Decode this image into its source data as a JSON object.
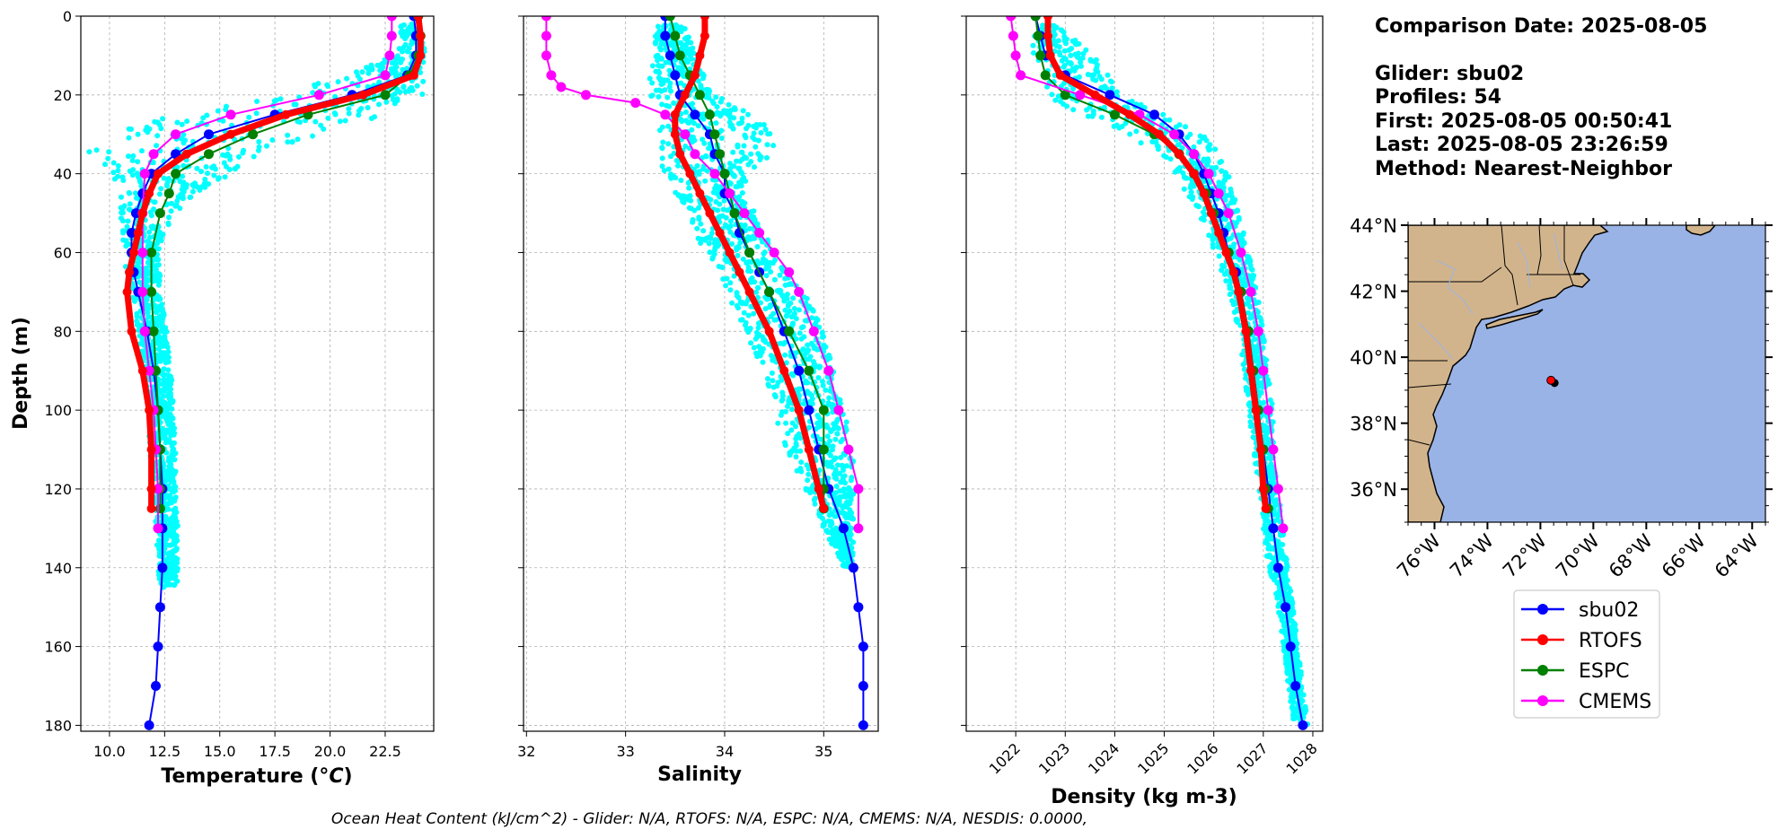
{
  "info": {
    "comparison": "Comparison Date: 2025-08-05",
    "glider": "Glider: sbu02",
    "profiles": "Profiles: 54",
    "first": "First: 2025-08-05 00:50:41",
    "last": "Last: 2025-08-05 23:26:59",
    "method": "Method: Nearest-Neighbor"
  },
  "footer": "Ocean Heat Content (kJ/cm^2) - Glider: N/A,  RTOFS: N/A,  ESPC: N/A,  CMEMS: N/A,  NESDIS: 0.0000,",
  "y_axis_label": "Depth (m)",
  "colors": {
    "sbu02": "#0000ff",
    "RTOFS": "#ff0000",
    "ESPC": "#008000",
    "CMEMS": "#ff00ff",
    "glider_points": "#00ffff",
    "grid": "#b0b0b0",
    "land": "#d2b48c",
    "ocean": "#99b3e6"
  },
  "map": {
    "lat_labels": [
      "44°N",
      "42°N",
      "40°N",
      "38°N",
      "36°N"
    ],
    "lat_values": [
      44,
      42,
      40,
      38,
      36
    ],
    "lon_labels": [
      "76°W",
      "74°W",
      "72°W",
      "70°W",
      "68°W",
      "66°W",
      "64°W"
    ],
    "lon_values": [
      -76,
      -74,
      -72,
      -70,
      -68,
      -66,
      -64
    ],
    "extent": {
      "lon_min": -77,
      "lon_max": -63.5,
      "lat_min": 35,
      "lat_max": 44
    },
    "glider_position": {
      "lon": -71.6,
      "lat": 39.3
    }
  },
  "legend": [
    {
      "name": "sbu02",
      "color": "#0000ff"
    },
    {
      "name": "RTOFS",
      "color": "#ff0000"
    },
    {
      "name": "ESPC",
      "color": "#008000"
    },
    {
      "name": "CMEMS",
      "color": "#ff00ff"
    }
  ],
  "chart_data": [
    {
      "type": "line",
      "title": "",
      "xlabel": "Temperature (°C)",
      "ylabel": "Depth (m)",
      "xlim": [
        8.7,
        24.7
      ],
      "ylim": [
        181.5,
        0
      ],
      "xticks": [
        10.0,
        12.5,
        15.0,
        17.5,
        20.0,
        22.5
      ],
      "xtick_labels": [
        "10.0",
        "12.5",
        "15.0",
        "17.5",
        "20.0",
        "22.5"
      ],
      "yticks": [
        0,
        20,
        40,
        60,
        80,
        100,
        120,
        140,
        160,
        180
      ],
      "ytick_labels": [
        "0",
        "20",
        "40",
        "60",
        "80",
        "100",
        "120",
        "140",
        "160",
        "180"
      ],
      "scatter_band": {
        "name": "glider profiles",
        "depth": [
          2,
          10,
          20,
          25,
          30,
          35,
          40,
          45,
          50,
          55,
          60,
          70,
          80,
          90,
          100,
          110,
          120,
          130,
          140,
          145
        ],
        "min": [
          23.2,
          23.0,
          18.0,
          13.0,
          9.5,
          9.0,
          9.5,
          10.5,
          10.5,
          10.5,
          10.5,
          11.0,
          11.3,
          11.5,
          11.8,
          11.8,
          12.0,
          12.1,
          12.2,
          12.3
        ],
        "max": [
          24.2,
          24.3,
          24.3,
          22.5,
          19.5,
          17.0,
          15.5,
          14.0,
          13.0,
          12.5,
          12.3,
          12.3,
          12.6,
          12.8,
          12.9,
          13.0,
          13.0,
          13.1,
          13.1,
          13.1
        ]
      },
      "series": [
        {
          "name": "sbu02",
          "depth": [
            0,
            5,
            10,
            15,
            20,
            25,
            30,
            35,
            40,
            45,
            50,
            55,
            60,
            65,
            70,
            80,
            90,
            100,
            110,
            120,
            130,
            140,
            150,
            160,
            170,
            180
          ],
          "values": [
            23.8,
            23.9,
            23.9,
            23.5,
            21.0,
            17.5,
            14.5,
            13.0,
            11.9,
            11.5,
            11.2,
            11.0,
            11.0,
            11.1,
            11.3,
            11.7,
            12.0,
            12.2,
            12.3,
            12.4,
            12.4,
            12.4,
            12.3,
            12.2,
            12.1,
            11.8
          ]
        },
        {
          "name": "RTOFS",
          "depth": [
            0,
            5,
            10,
            15,
            20,
            25,
            30,
            35,
            40,
            45,
            50,
            55,
            60,
            65,
            70,
            80,
            90,
            100,
            110,
            120,
            125
          ],
          "values": [
            24.0,
            24.1,
            24.1,
            23.8,
            21.5,
            18.0,
            15.5,
            13.5,
            12.2,
            11.8,
            11.5,
            11.3,
            11.1,
            10.9,
            10.8,
            11.0,
            11.5,
            11.8,
            11.9,
            11.9,
            11.9
          ]
        },
        {
          "name": "ESPC",
          "depth": [
            0,
            5,
            10,
            15,
            20,
            25,
            30,
            35,
            40,
            45,
            50,
            60,
            70,
            80,
            90,
            100,
            110,
            120,
            125
          ],
          "values": [
            24.0,
            24.1,
            24.0,
            23.6,
            22.5,
            19.0,
            16.5,
            14.5,
            13.0,
            12.7,
            12.3,
            11.9,
            11.9,
            12.0,
            12.1,
            12.2,
            12.3,
            12.3,
            12.3
          ]
        },
        {
          "name": "CMEMS",
          "depth": [
            0,
            5,
            10,
            15,
            20,
            25,
            30,
            35,
            40,
            50,
            60,
            70,
            80,
            90,
            100,
            110,
            120,
            130
          ],
          "values": [
            22.8,
            22.8,
            22.7,
            22.5,
            19.5,
            15.5,
            13.0,
            12.0,
            11.6,
            11.5,
            11.5,
            11.5,
            11.6,
            11.8,
            12.0,
            12.1,
            12.2,
            12.2
          ]
        }
      ]
    },
    {
      "type": "line",
      "title": "",
      "xlabel": "Salinity",
      "ylabel": "",
      "xlim": [
        31.97,
        35.55
      ],
      "ylim": [
        181.5,
        0
      ],
      "xticks": [
        32,
        33,
        34,
        35
      ],
      "xtick_labels": [
        "32",
        "33",
        "34",
        "35"
      ],
      "yticks": [
        0,
        20,
        40,
        60,
        80,
        100,
        120,
        140,
        160,
        180
      ],
      "scatter_band": {
        "name": "glider profiles",
        "depth": [
          2,
          10,
          20,
          25,
          30,
          35,
          40,
          50,
          60,
          70,
          80,
          90,
          100,
          110,
          120,
          130,
          140
        ],
        "min": [
          33.3,
          33.3,
          33.2,
          33.4,
          33.3,
          33.3,
          33.4,
          33.6,
          33.8,
          34.0,
          34.2,
          34.4,
          34.5,
          34.6,
          34.8,
          35.0,
          35.2
        ],
        "max": [
          33.6,
          33.7,
          33.9,
          34.3,
          34.5,
          34.5,
          34.2,
          34.3,
          34.5,
          34.8,
          35.0,
          35.1,
          35.2,
          35.3,
          35.3,
          35.3,
          35.3
        ]
      },
      "series": [
        {
          "name": "sbu02",
          "depth": [
            0,
            5,
            10,
            15,
            20,
            25,
            30,
            35,
            40,
            45,
            50,
            55,
            60,
            65,
            70,
            80,
            90,
            100,
            110,
            120,
            130,
            140,
            150,
            160,
            170,
            180
          ],
          "values": [
            33.4,
            33.4,
            33.45,
            33.5,
            33.55,
            33.7,
            33.85,
            33.9,
            34.0,
            34.0,
            34.1,
            34.15,
            34.25,
            34.35,
            34.45,
            34.6,
            34.75,
            34.85,
            34.95,
            35.05,
            35.2,
            35.3,
            35.35,
            35.4,
            35.4,
            35.4
          ]
        },
        {
          "name": "RTOFS",
          "depth": [
            0,
            5,
            10,
            15,
            20,
            25,
            30,
            35,
            40,
            45,
            50,
            55,
            60,
            65,
            70,
            80,
            90,
            100,
            110,
            120,
            125
          ],
          "values": [
            33.8,
            33.8,
            33.75,
            33.7,
            33.6,
            33.5,
            33.5,
            33.55,
            33.65,
            33.75,
            33.85,
            33.95,
            34.05,
            34.15,
            34.25,
            34.45,
            34.6,
            34.75,
            34.85,
            34.95,
            35.0
          ]
        },
        {
          "name": "ESPC",
          "depth": [
            0,
            5,
            10,
            15,
            20,
            25,
            30,
            35,
            40,
            45,
            50,
            60,
            70,
            80,
            90,
            100,
            110,
            120,
            125
          ],
          "values": [
            33.45,
            33.5,
            33.55,
            33.65,
            33.75,
            33.85,
            33.9,
            33.95,
            34.0,
            34.05,
            34.1,
            34.25,
            34.45,
            34.65,
            34.85,
            35.0,
            35.0,
            35.0,
            35.0
          ]
        },
        {
          "name": "CMEMS",
          "depth": [
            0,
            5,
            10,
            15,
            18,
            20,
            22,
            25,
            30,
            35,
            40,
            45,
            50,
            55,
            60,
            65,
            70,
            80,
            90,
            100,
            110,
            120,
            130
          ],
          "values": [
            32.2,
            32.2,
            32.2,
            32.25,
            32.35,
            32.6,
            33.1,
            33.4,
            33.6,
            33.7,
            33.9,
            34.05,
            34.2,
            34.35,
            34.5,
            34.65,
            34.75,
            34.9,
            35.05,
            35.15,
            35.25,
            35.35,
            35.35
          ]
        }
      ]
    },
    {
      "type": "line",
      "title": "",
      "xlabel": "Density (kg m-3)",
      "ylabel": "",
      "xlim": [
        1021.0,
        1028.2
      ],
      "ylim": [
        181.5,
        0
      ],
      "xticks": [
        1022,
        1023,
        1024,
        1025,
        1026,
        1027,
        1028
      ],
      "xtick_labels": [
        "1022",
        "1023",
        "1024",
        "1025",
        "1026",
        "1027",
        "1028"
      ],
      "yticks": [
        0,
        20,
        40,
        60,
        80,
        100,
        120,
        140,
        160,
        180
      ],
      "scatter_band": {
        "name": "glider profiles",
        "depth": [
          2,
          10,
          20,
          25,
          30,
          35,
          40,
          50,
          60,
          70,
          80,
          90,
          100,
          110,
          120,
          130,
          140,
          150,
          160,
          170,
          180
        ],
        "min": [
          1022.4,
          1022.3,
          1022.6,
          1023.3,
          1024.2,
          1024.9,
          1025.2,
          1025.7,
          1026.0,
          1026.3,
          1026.5,
          1026.6,
          1026.7,
          1026.8,
          1026.9,
          1027.0,
          1027.1,
          1027.3,
          1027.4,
          1027.5,
          1027.6
        ],
        "max": [
          1022.8,
          1023.6,
          1024.2,
          1025.0,
          1025.8,
          1026.1,
          1026.3,
          1026.5,
          1026.7,
          1026.9,
          1027.0,
          1027.1,
          1027.2,
          1027.2,
          1027.3,
          1027.4,
          1027.5,
          1027.6,
          1027.7,
          1027.8,
          1027.9
        ]
      },
      "series": [
        {
          "name": "sbu02",
          "depth": [
            0,
            5,
            10,
            15,
            20,
            25,
            30,
            35,
            40,
            45,
            50,
            55,
            60,
            65,
            70,
            80,
            90,
            100,
            110,
            120,
            130,
            140,
            150,
            160,
            170,
            180
          ],
          "values": [
            1022.4,
            1022.5,
            1022.6,
            1023.0,
            1023.9,
            1024.8,
            1025.3,
            1025.6,
            1025.8,
            1025.95,
            1026.1,
            1026.2,
            1026.3,
            1026.45,
            1026.55,
            1026.7,
            1026.8,
            1026.9,
            1027.0,
            1027.1,
            1027.2,
            1027.3,
            1027.45,
            1027.55,
            1027.65,
            1027.8
          ]
        },
        {
          "name": "RTOFS",
          "depth": [
            0,
            5,
            10,
            15,
            20,
            25,
            30,
            35,
            40,
            45,
            50,
            55,
            60,
            65,
            70,
            80,
            90,
            100,
            110,
            120,
            125
          ],
          "values": [
            1022.65,
            1022.65,
            1022.7,
            1022.9,
            1023.6,
            1024.3,
            1024.9,
            1025.3,
            1025.6,
            1025.8,
            1025.95,
            1026.1,
            1026.25,
            1026.4,
            1026.5,
            1026.65,
            1026.75,
            1026.85,
            1026.95,
            1027.0,
            1027.05
          ]
        },
        {
          "name": "ESPC",
          "depth": [
            0,
            5,
            10,
            15,
            20,
            25,
            30,
            35,
            40,
            45,
            50,
            60,
            70,
            80,
            90,
            100,
            110,
            120,
            125
          ],
          "values": [
            1022.4,
            1022.45,
            1022.5,
            1022.6,
            1023.0,
            1024.0,
            1024.8,
            1025.3,
            1025.6,
            1025.85,
            1026.0,
            1026.3,
            1026.55,
            1026.7,
            1026.8,
            1026.9,
            1027.0,
            1027.05,
            1027.1
          ]
        },
        {
          "name": "CMEMS",
          "depth": [
            0,
            5,
            10,
            15,
            20,
            25,
            30,
            35,
            40,
            45,
            50,
            60,
            70,
            80,
            90,
            100,
            110,
            120,
            130
          ],
          "values": [
            1021.9,
            1021.95,
            1022.0,
            1022.1,
            1023.3,
            1024.5,
            1025.2,
            1025.6,
            1025.9,
            1026.1,
            1026.3,
            1026.55,
            1026.75,
            1026.9,
            1027.0,
            1027.1,
            1027.2,
            1027.3,
            1027.4
          ]
        }
      ]
    }
  ]
}
